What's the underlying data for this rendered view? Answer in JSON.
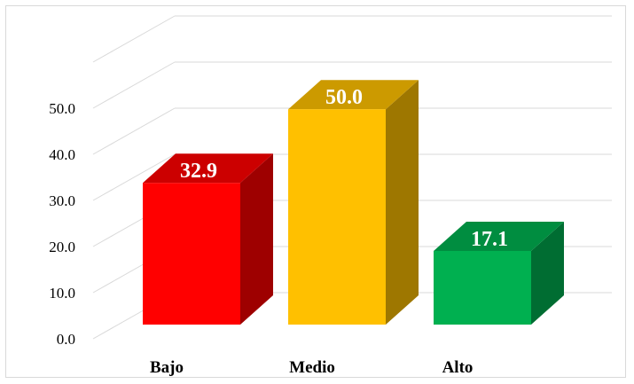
{
  "chart_data": {
    "type": "bar",
    "categories": [
      "Bajo",
      "Medio",
      "Alto"
    ],
    "values": [
      32.9,
      50.0,
      17.1
    ],
    "value_labels": [
      "32.9",
      "50.0",
      "17.1"
    ],
    "ytick_labels": [
      "0.0",
      "10.0",
      "20.0",
      "30.0",
      "40.0",
      "50.0"
    ],
    "ylim": [
      0,
      60
    ],
    "title": "",
    "xlabel": "",
    "ylabel": "",
    "grid": true,
    "style": "3d-column",
    "colors": {
      "Bajo": "#ff0000",
      "Medio": "#ffc000",
      "Alto": "#00b050",
      "gridline": "#d9d9d9"
    }
  }
}
